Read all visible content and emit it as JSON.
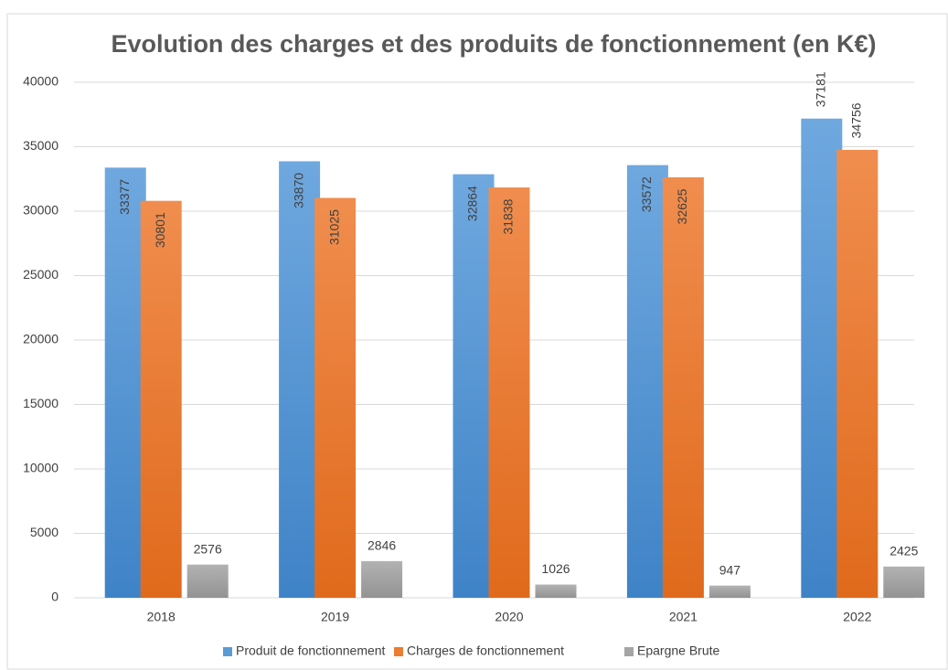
{
  "chart_data": {
    "type": "bar",
    "title": "Evolution des charges et des produits de fonctionnement (en K€)",
    "categories": [
      "2018",
      "2019",
      "2020",
      "2021",
      "2022"
    ],
    "series": [
      {
        "name": "Produit de fonctionnement",
        "color": "#5b9bd5",
        "values": [
          33377,
          33870,
          32864,
          33572,
          37181
        ]
      },
      {
        "name": "Charges de fonctionnement",
        "color": "#ed7d31",
        "values": [
          30801,
          31025,
          31838,
          32625,
          34756
        ]
      },
      {
        "name": "Epargne Brute",
        "color": "#a5a5a5",
        "values": [
          2576,
          2846,
          1026,
          947,
          2425
        ]
      }
    ],
    "ylim": [
      0,
      40000
    ],
    "yticks": [
      0,
      5000,
      10000,
      15000,
      20000,
      25000,
      30000,
      35000,
      40000
    ],
    "grid": true,
    "legend": "bottom"
  }
}
